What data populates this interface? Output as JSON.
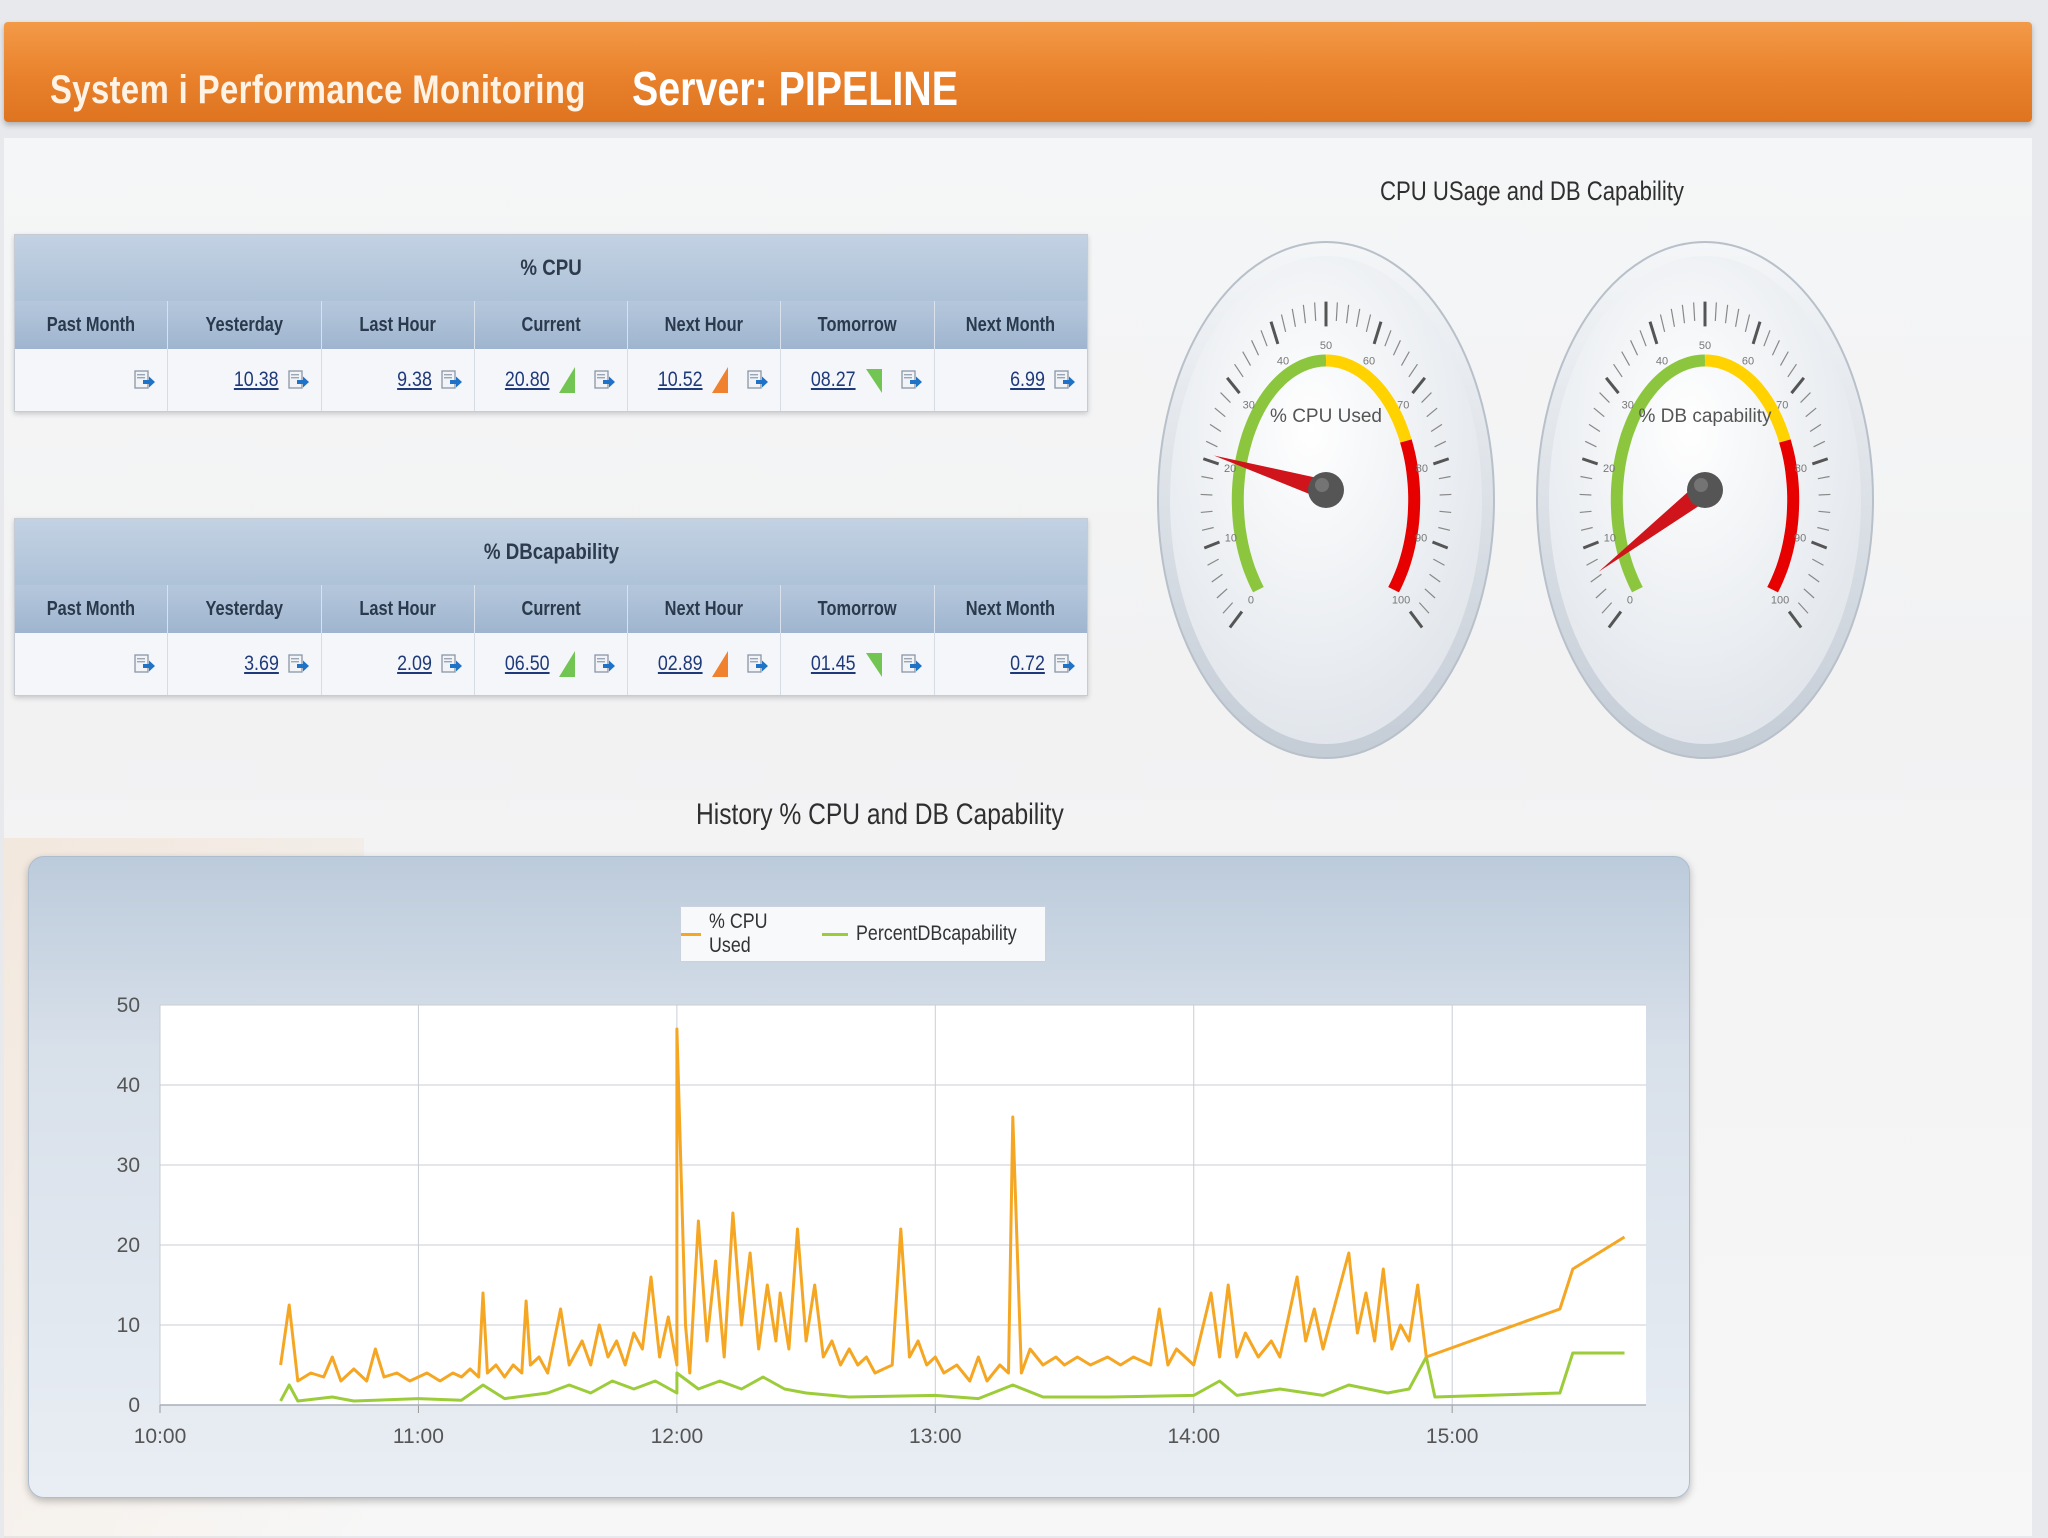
{
  "header": {
    "app_title": "System i Performance Monitoring",
    "server_title": "Server: PIPELINE"
  },
  "colors": {
    "header": "#e9812c",
    "cpu_line": "#f5a623",
    "db_line": "#9ccc3a",
    "gauge_green": "#8cc63f",
    "gauge_yellow": "#ffd200",
    "gauge_red": "#e60000",
    "needle": "#d0141b"
  },
  "cpu_table": {
    "title": "% CPU",
    "columns": [
      "Past Month",
      "Yesterday",
      "Last Hour",
      "Current",
      "Next Hour",
      "Tomorrow",
      "Next Month"
    ],
    "values": [
      "",
      "10.38",
      "9.38",
      "20.80",
      "10.52",
      "08.27",
      "6.99"
    ],
    "trends": [
      "",
      "",
      "",
      "up-green",
      "up-orange",
      "down-green",
      ""
    ]
  },
  "db_table": {
    "title": "% DBcapability",
    "columns": [
      "Past Month",
      "Yesterday",
      "Last Hour",
      "Current",
      "Next Hour",
      "Tomorrow",
      "Next Month"
    ],
    "values": [
      "",
      "3.69",
      "2.09",
      "06.50",
      "02.89",
      "01.45",
      "0.72"
    ],
    "trends": [
      "",
      "",
      "",
      "up-green",
      "up-orange",
      "down-green",
      ""
    ]
  },
  "gauges": {
    "title": "CPU USage and DB Capability",
    "items": [
      {
        "label": "% CPU Used",
        "value": 20.8,
        "min": 0,
        "max": 100
      },
      {
        "label": "% DB capability",
        "value": 6.5,
        "min": 0,
        "max": 100
      }
    ],
    "tick_labels": [
      "0",
      "10",
      "20",
      "30",
      "40",
      "50",
      "60",
      "70",
      "80",
      "90",
      "100"
    ]
  },
  "chart_data": {
    "type": "line",
    "title": "History % CPU and DB Capability",
    "xlabel": "",
    "ylabel": "",
    "ylim": [
      0,
      50
    ],
    "yticks": [
      0,
      10,
      20,
      30,
      40,
      50
    ],
    "xlim": [
      "10:00",
      "15:45"
    ],
    "xticks": [
      "10:00",
      "11:00",
      "12:00",
      "13:00",
      "14:00",
      "15:00"
    ],
    "grid": true,
    "legend": "top-center",
    "series": [
      {
        "name": "% CPU Used",
        "color": "#f5a623",
        "points": [
          [
            "10:28",
            5
          ],
          [
            "10:30",
            12.5
          ],
          [
            "10:32",
            3
          ],
          [
            "10:35",
            4
          ],
          [
            "10:38",
            3.5
          ],
          [
            "10:40",
            6
          ],
          [
            "10:42",
            3
          ],
          [
            "10:45",
            4.5
          ],
          [
            "10:48",
            3
          ],
          [
            "10:50",
            7
          ],
          [
            "10:52",
            3.5
          ],
          [
            "10:55",
            4
          ],
          [
            "10:58",
            3
          ],
          [
            "11:00",
            3.5
          ],
          [
            "11:02",
            4
          ],
          [
            "11:05",
            3
          ],
          [
            "11:08",
            4
          ],
          [
            "11:10",
            3.5
          ],
          [
            "11:12",
            4.5
          ],
          [
            "11:14",
            3.5
          ],
          [
            "11:15",
            14
          ],
          [
            "11:16",
            4
          ],
          [
            "11:18",
            5
          ],
          [
            "11:20",
            3.5
          ],
          [
            "11:22",
            5
          ],
          [
            "11:24",
            4
          ],
          [
            "11:25",
            13
          ],
          [
            "11:26",
            5
          ],
          [
            "11:28",
            6
          ],
          [
            "11:30",
            4
          ],
          [
            "11:33",
            12
          ],
          [
            "11:35",
            5
          ],
          [
            "11:38",
            8
          ],
          [
            "11:40",
            5
          ],
          [
            "11:42",
            10
          ],
          [
            "11:44",
            6
          ],
          [
            "11:46",
            8
          ],
          [
            "11:48",
            5
          ],
          [
            "11:50",
            9
          ],
          [
            "11:52",
            7
          ],
          [
            "11:54",
            16
          ],
          [
            "11:56",
            6
          ],
          [
            "11:58",
            11
          ],
          [
            "12:00",
            5
          ],
          [
            "12:00",
            47
          ],
          [
            "12:02",
            10
          ],
          [
            "12:03",
            4
          ],
          [
            "12:05",
            23
          ],
          [
            "12:07",
            8
          ],
          [
            "12:09",
            18
          ],
          [
            "12:11",
            6
          ],
          [
            "12:13",
            24
          ],
          [
            "12:15",
            10
          ],
          [
            "12:17",
            19
          ],
          [
            "12:19",
            7
          ],
          [
            "12:21",
            15
          ],
          [
            "12:23",
            8
          ],
          [
            "12:24",
            14
          ],
          [
            "12:26",
            7
          ],
          [
            "12:28",
            22
          ],
          [
            "12:30",
            8
          ],
          [
            "12:32",
            15
          ],
          [
            "12:34",
            6
          ],
          [
            "12:36",
            8
          ],
          [
            "12:38",
            5
          ],
          [
            "12:40",
            7
          ],
          [
            "12:42",
            5
          ],
          [
            "12:44",
            6
          ],
          [
            "12:46",
            4
          ],
          [
            "12:50",
            5
          ],
          [
            "12:52",
            22
          ],
          [
            "12:54",
            6
          ],
          [
            "12:56",
            8
          ],
          [
            "12:58",
            5
          ],
          [
            "13:00",
            6
          ],
          [
            "13:02",
            4
          ],
          [
            "13:05",
            5
          ],
          [
            "13:08",
            3
          ],
          [
            "13:10",
            6
          ],
          [
            "13:12",
            3
          ],
          [
            "13:15",
            5
          ],
          [
            "13:17",
            4
          ],
          [
            "13:18",
            36
          ],
          [
            "13:20",
            4
          ],
          [
            "13:22",
            7
          ],
          [
            "13:25",
            5
          ],
          [
            "13:28",
            6
          ],
          [
            "13:30",
            5
          ],
          [
            "13:33",
            6
          ],
          [
            "13:36",
            5
          ],
          [
            "13:40",
            6
          ],
          [
            "13:43",
            5
          ],
          [
            "13:46",
            6
          ],
          [
            "13:50",
            5
          ],
          [
            "13:52",
            12
          ],
          [
            "13:54",
            5
          ],
          [
            "13:56",
            7
          ],
          [
            "14:00",
            5
          ],
          [
            "14:04",
            14
          ],
          [
            "14:06",
            6
          ],
          [
            "14:08",
            15
          ],
          [
            "14:10",
            6
          ],
          [
            "14:12",
            9
          ],
          [
            "14:15",
            6
          ],
          [
            "14:18",
            8
          ],
          [
            "14:20",
            6
          ],
          [
            "14:24",
            16
          ],
          [
            "14:26",
            8
          ],
          [
            "14:28",
            12
          ],
          [
            "14:30",
            7
          ],
          [
            "14:36",
            19
          ],
          [
            "14:38",
            9
          ],
          [
            "14:40",
            14
          ],
          [
            "14:42",
            8
          ],
          [
            "14:44",
            17
          ],
          [
            "14:46",
            7
          ],
          [
            "14:48",
            10
          ],
          [
            "14:50",
            8
          ],
          [
            "14:52",
            15
          ],
          [
            "14:54",
            6
          ],
          [
            "15:25",
            12
          ],
          [
            "15:28",
            17
          ],
          [
            "15:40",
            21
          ]
        ]
      },
      {
        "name": "PercentDBcapability",
        "color": "#9ccc3a",
        "points": [
          [
            "10:28",
            0.5
          ],
          [
            "10:30",
            2.5
          ],
          [
            "10:32",
            0.5
          ],
          [
            "10:40",
            1
          ],
          [
            "10:45",
            0.5
          ],
          [
            "11:00",
            0.8
          ],
          [
            "11:10",
            0.6
          ],
          [
            "11:15",
            2.5
          ],
          [
            "11:20",
            0.8
          ],
          [
            "11:30",
            1.5
          ],
          [
            "11:35",
            2.5
          ],
          [
            "11:40",
            1.5
          ],
          [
            "11:45",
            3
          ],
          [
            "11:50",
            2
          ],
          [
            "11:55",
            3
          ],
          [
            "12:00",
            1.5
          ],
          [
            "12:00",
            4
          ],
          [
            "12:05",
            2
          ],
          [
            "12:10",
            3
          ],
          [
            "12:15",
            2
          ],
          [
            "12:20",
            3.5
          ],
          [
            "12:25",
            2
          ],
          [
            "12:30",
            1.5
          ],
          [
            "12:40",
            1
          ],
          [
            "13:00",
            1.2
          ],
          [
            "13:10",
            0.8
          ],
          [
            "13:18",
            2.5
          ],
          [
            "13:25",
            1
          ],
          [
            "13:40",
            1
          ],
          [
            "14:00",
            1.2
          ],
          [
            "14:06",
            3
          ],
          [
            "14:10",
            1.2
          ],
          [
            "14:20",
            2
          ],
          [
            "14:30",
            1.2
          ],
          [
            "14:36",
            2.5
          ],
          [
            "14:45",
            1.5
          ],
          [
            "14:50",
            2
          ],
          [
            "14:54",
            6
          ],
          [
            "14:56",
            1
          ],
          [
            "15:25",
            1.5
          ],
          [
            "15:28",
            6.5
          ],
          [
            "15:40",
            6.5
          ]
        ]
      }
    ]
  }
}
